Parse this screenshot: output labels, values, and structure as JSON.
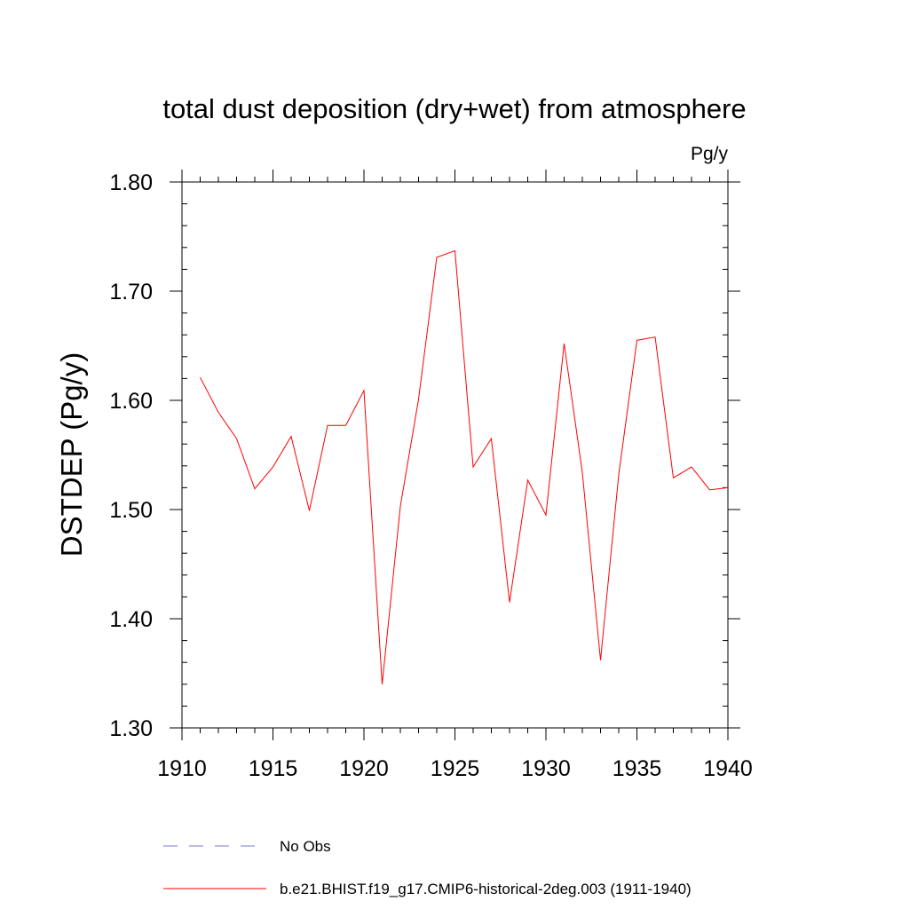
{
  "chart_data": {
    "type": "line",
    "title": "total dust deposition (dry+wet) from atmosphere",
    "units_label": "Pg/y",
    "ylabel": "DSTDEP  (Pg/y)",
    "xlabel": "",
    "xlim": [
      1910,
      1940
    ],
    "ylim": [
      1.3,
      1.8
    ],
    "x_ticks": [
      1910,
      1915,
      1920,
      1925,
      1930,
      1935,
      1940
    ],
    "x_tick_labels": [
      "1910",
      "1915",
      "1920",
      "1925",
      "1930",
      "1935",
      "1940"
    ],
    "y_ticks": [
      1.3,
      1.4,
      1.5,
      1.6,
      1.7,
      1.8
    ],
    "y_tick_labels": [
      "1.30",
      "1.40",
      "1.50",
      "1.60",
      "1.70",
      "1.80"
    ],
    "grid": false,
    "legend_position": "bottom",
    "series": [
      {
        "name": "b.e21.BHIST.f19_g17.CMIP6-historical-2deg.003 (1911-1940)",
        "color": "#ff0000",
        "x": [
          1911,
          1912,
          1913,
          1914,
          1915,
          1916,
          1917,
          1918,
          1919,
          1920,
          1921,
          1922,
          1923,
          1924,
          1925,
          1926,
          1927,
          1928,
          1929,
          1930,
          1931,
          1932,
          1933,
          1934,
          1935,
          1936,
          1937,
          1938,
          1939,
          1940
        ],
        "y": [
          1.621,
          1.589,
          1.565,
          1.519,
          1.539,
          1.567,
          1.499,
          1.577,
          1.577,
          1.609,
          1.34,
          1.503,
          1.601,
          1.731,
          1.737,
          1.539,
          1.565,
          1.415,
          1.527,
          1.495,
          1.652,
          1.534,
          1.362,
          1.532,
          1.655,
          1.658,
          1.529,
          1.539,
          1.518,
          1.52
        ]
      }
    ],
    "legend": [
      {
        "label": "No Obs",
        "color": "#7b7bc8",
        "style": "dashed"
      },
      {
        "label": "b.e21.BHIST.f19_g17.CMIP6-historical-2deg.003 (1911-1940)",
        "color": "#ff0000",
        "style": "solid"
      }
    ]
  }
}
